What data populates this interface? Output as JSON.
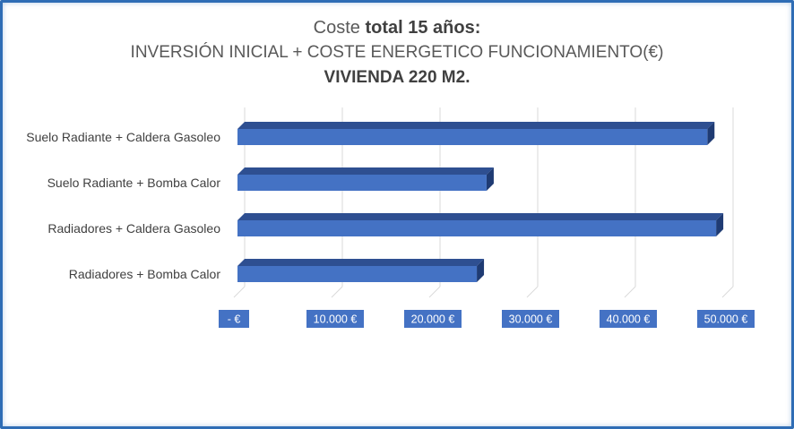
{
  "chart_data": {
    "type": "bar",
    "orientation": "horizontal",
    "title": {
      "prefix": "Coste ",
      "bold": "total 15 años:",
      "line2": "INVERSIÓN INICIAL + COSTE ENERGETICO FUNCIONAMIENTO(€)",
      "line3": "VIVIENDA 220 M2."
    },
    "categories": [
      "Suelo Radiante + Caldera Gasoleo",
      "Suelo Radiante + Bomba Calor",
      "Radiadores + Caldera Gasoleo",
      "Radiadores + Bomba Calor"
    ],
    "values": [
      48100,
      25500,
      49000,
      24500
    ],
    "xlim": [
      0,
      50000
    ],
    "ticks": [
      {
        "value": 0,
        "label": "-   €"
      },
      {
        "value": 10000,
        "label": "10.000 €"
      },
      {
        "value": 20000,
        "label": "20.000 €"
      },
      {
        "value": 30000,
        "label": "30.000 €"
      },
      {
        "value": 40000,
        "label": "40.000 €"
      },
      {
        "value": 50000,
        "label": "50.000 €"
      }
    ],
    "grid": true,
    "legend": "none",
    "colors": {
      "bar_front": "#4472c4",
      "bar_top": "#2e4f91",
      "bar_side": "#1f3b73",
      "tick_badge": "#4472c4",
      "grid": "#d9d9d9",
      "frame": "#2f6db5"
    }
  }
}
